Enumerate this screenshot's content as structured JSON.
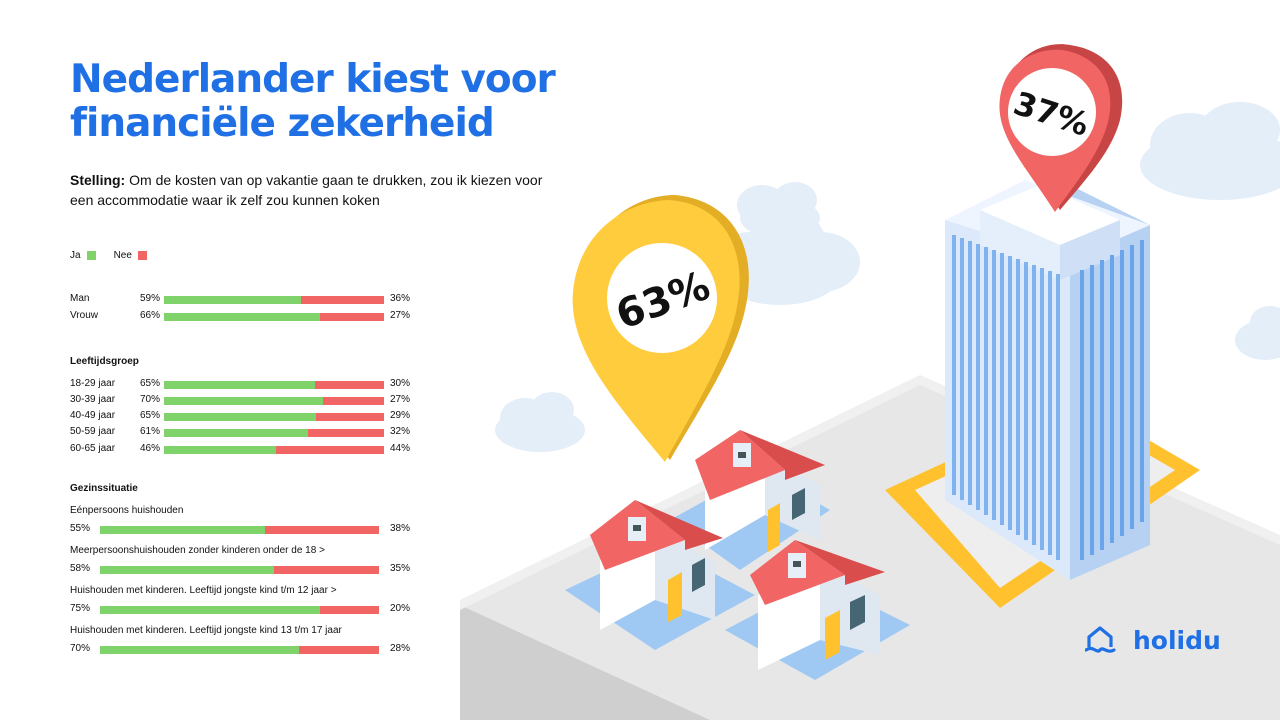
{
  "title": {
    "line1": "Nederlander kiest voor",
    "line2": "financiële zekerheid"
  },
  "statement": {
    "label": "Stelling:",
    "text": "Om de kosten van op vakantie gaan te drukken, zou ik kiezen voor een accommodatie waar ik zelf zou kunnen koken"
  },
  "colors": {
    "ja": "#7fd36a",
    "nee": "#f26565",
    "brand": "#1f6fe5"
  },
  "illustration": {
    "pin_yellow_label": "63%",
    "pin_red_label": "37%"
  },
  "logo": {
    "text": "holidu",
    "icon": "holidu-house-icon"
  },
  "chart_data": {
    "type": "bar",
    "legend": [
      {
        "name": "Ja",
        "color": "#7fd36a"
      },
      {
        "name": "Nee",
        "color": "#f26565"
      }
    ],
    "groups": [
      {
        "title": "",
        "rows": [
          {
            "label": "Man",
            "ja": 59,
            "nee": 36
          },
          {
            "label": "Vrouw",
            "ja": 66,
            "nee": 27
          }
        ]
      },
      {
        "title": "Leeftijdsgroep",
        "rows": [
          {
            "label": "18-29 jaar",
            "ja": 65,
            "nee": 30
          },
          {
            "label": "30-39 jaar",
            "ja": 70,
            "nee": 27
          },
          {
            "label": "40-49 jaar",
            "ja": 65,
            "nee": 29
          },
          {
            "label": "50-59 jaar",
            "ja": 61,
            "nee": 32
          },
          {
            "label": "60-65 jaar",
            "ja": 46,
            "nee": 44
          }
        ]
      },
      {
        "title": "Gezinssituatie",
        "rows": [
          {
            "label": "Eénpersoons huishouden",
            "ja": 55,
            "nee": 38
          },
          {
            "label": "Meerpersoonshuishouden zonder kinderen onder de 18 >",
            "ja": 58,
            "nee": 35
          },
          {
            "label": "Huishouden met kinderen. Leeftijd jongste kind t/m 12 jaar >",
            "ja": 75,
            "nee": 20
          },
          {
            "label": "Huishouden met kinderen. Leeftijd jongste kind 13 t/m 17 jaar",
            "ja": 70,
            "nee": 28
          }
        ]
      }
    ]
  }
}
